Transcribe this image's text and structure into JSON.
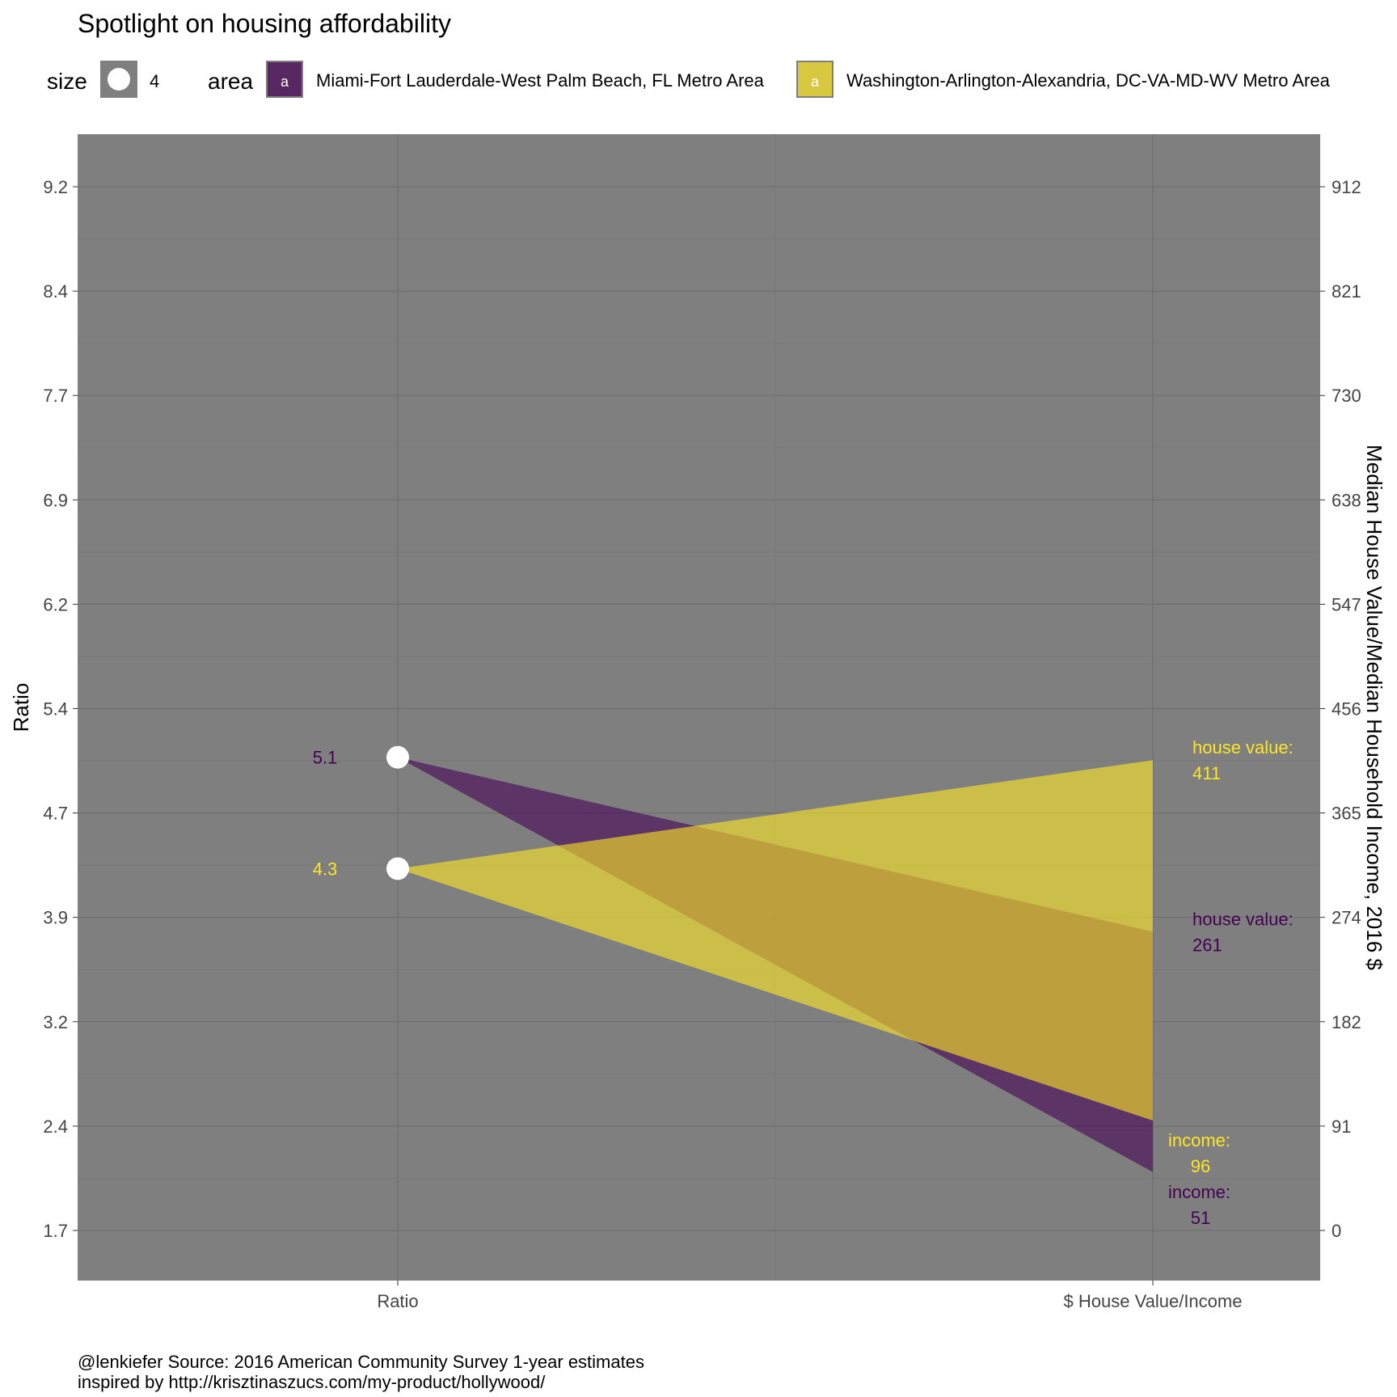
{
  "title": "Spotlight on housing affordability",
  "caption": [
    "@lenkiefer Source: 2016 American Community Survey 1-year estimates",
    "inspired by http://krisztinaszucs.com/my-product/hollywood/"
  ],
  "colors": {
    "panel": "#7f7f7f",
    "grid_major": "#6f6f6f",
    "grid_minor": "#767676",
    "miami": "#440154",
    "washington": "#fde725",
    "point": "#ffffff"
  },
  "legend": {
    "size_title": "size",
    "size_value": "4",
    "area_title": "area",
    "key_glyph": "a",
    "items": [
      {
        "label": "Miami-Fort Lauderdale-West Palm Beach, FL Metro Area",
        "color": "#440154"
      },
      {
        "label": "Washington-Arlington-Alexandria, DC-VA-MD-WV Metro Area",
        "color": "#fde725"
      }
    ]
  },
  "chart_data": {
    "type": "area",
    "x_categories": [
      "Ratio",
      "$ House Value/Income"
    ],
    "ylabel_left": "Ratio",
    "ylabel_right": "Median House Value/Median Household Income, 2016 $",
    "y_left_ticks": [
      "9.2",
      "8.4",
      "7.7",
      "6.9",
      "6.2",
      "5.4",
      "4.7",
      "3.9",
      "3.2",
      "2.4",
      "1.7"
    ],
    "y_right_ticks": [
      "912",
      "821",
      "730",
      "638",
      "547",
      "456",
      "365",
      "274",
      "182",
      "91",
      "0"
    ],
    "ylim_right": [
      -43,
      957
    ],
    "series": [
      {
        "name": "Miami-Fort Lauderdale-West Palm Beach, FL Metro Area",
        "color": "#440154",
        "ratio": 5.1,
        "ratio_label": "5.1",
        "house_value": 261,
        "income": 51,
        "house_value_label": "house value:",
        "house_value_text": "261",
        "income_label": "income:",
        "income_text": "51"
      },
      {
        "name": "Washington-Arlington-Alexandria, DC-VA-MD-WV Metro Area",
        "color": "#fde725",
        "ratio": 4.3,
        "ratio_label": "4.3",
        "house_value": 411,
        "income": 96,
        "house_value_label": "house value:",
        "house_value_text": "411",
        "income_label": "income:",
        "income_text": "96"
      }
    ]
  }
}
